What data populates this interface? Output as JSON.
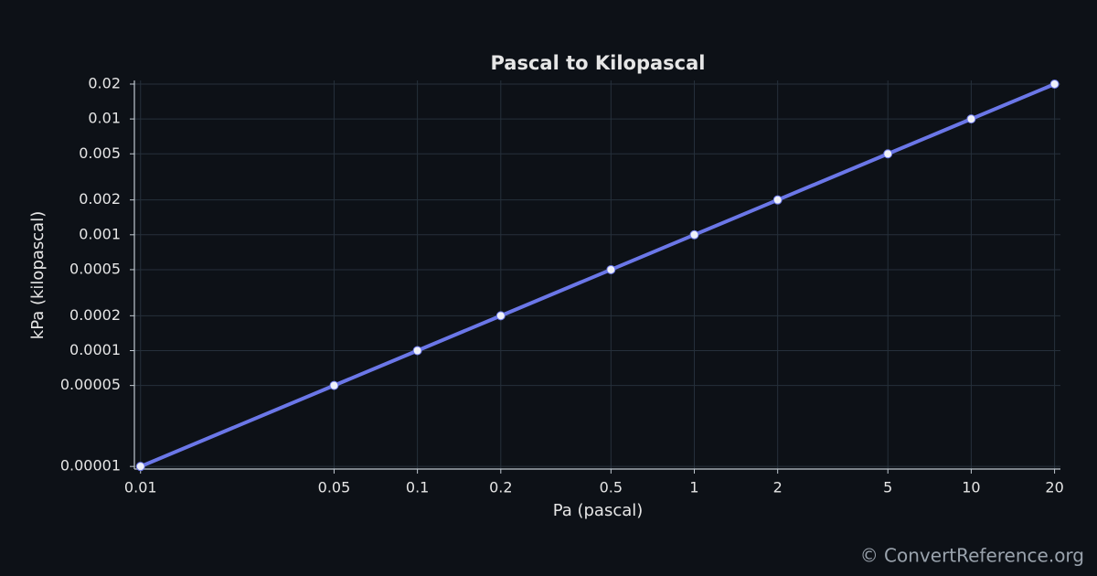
{
  "chart_data": {
    "type": "line",
    "title": "Pascal to Kilopascal",
    "x_label": "Pa (pascal)",
    "y_label": "kPa (kilopascal)",
    "x": [
      0.01,
      0.05,
      0.1,
      0.2,
      0.5,
      1,
      2,
      5,
      10,
      20
    ],
    "series": [
      {
        "name": "kPa",
        "color": "#6b77e8",
        "values": [
          1e-05,
          5e-05,
          0.0001,
          0.0002,
          0.0005,
          0.001,
          0.002,
          0.005,
          0.01,
          0.02
        ]
      }
    ],
    "xlim": [
      0.0095,
      21
    ],
    "ylim": [
      9.5e-06,
      0.0215
    ],
    "xticks": [
      0.01,
      0.05,
      0.1,
      0.2,
      0.5,
      1,
      2,
      5,
      10,
      20
    ],
    "yticks": [
      1e-05,
      5e-05,
      0.0001,
      0.0002,
      0.0005,
      0.001,
      0.002,
      0.005,
      0.01,
      0.02
    ],
    "xscale": "log",
    "yscale": "log",
    "grid": true
  },
  "footer": "© ConvertReference.org"
}
